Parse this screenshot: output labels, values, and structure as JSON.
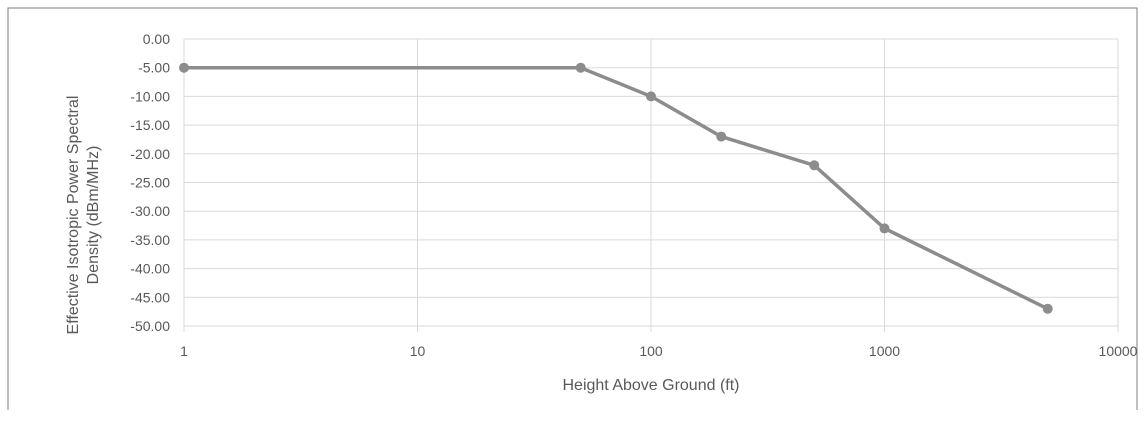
{
  "chart_data": {
    "type": "line",
    "title": "",
    "xlabel": "Height Above Ground (ft)",
    "ylabel_lines": [
      "Effective Isotropic Power Spectral",
      "Density (dBm/MHz)"
    ],
    "x_scale": "log",
    "xlim": [
      1,
      10000
    ],
    "ylim": [
      -50,
      0
    ],
    "grid": true,
    "legend": "none",
    "x_tick_labels": [
      "1",
      "10",
      "100",
      "1000",
      "10000"
    ],
    "y_tick_labels": [
      "0.00",
      "-5.00",
      "-10.00",
      "-15.00",
      "-20.00",
      "-25.00",
      "-30.00",
      "-35.00",
      "-40.00",
      "-45.00",
      "-50.00"
    ],
    "series": [
      {
        "x": [
          1,
          50,
          100,
          200,
          500,
          1000,
          5000
        ],
        "y": [
          -5,
          -5,
          -10,
          -17,
          -22,
          -33,
          -47
        ]
      }
    ],
    "colors": {
      "line": "#8c8c8c",
      "marker": "#8c8c8c",
      "grid": "#d9d9d9",
      "text": "#595959",
      "frame": "#7f7f7f"
    }
  }
}
